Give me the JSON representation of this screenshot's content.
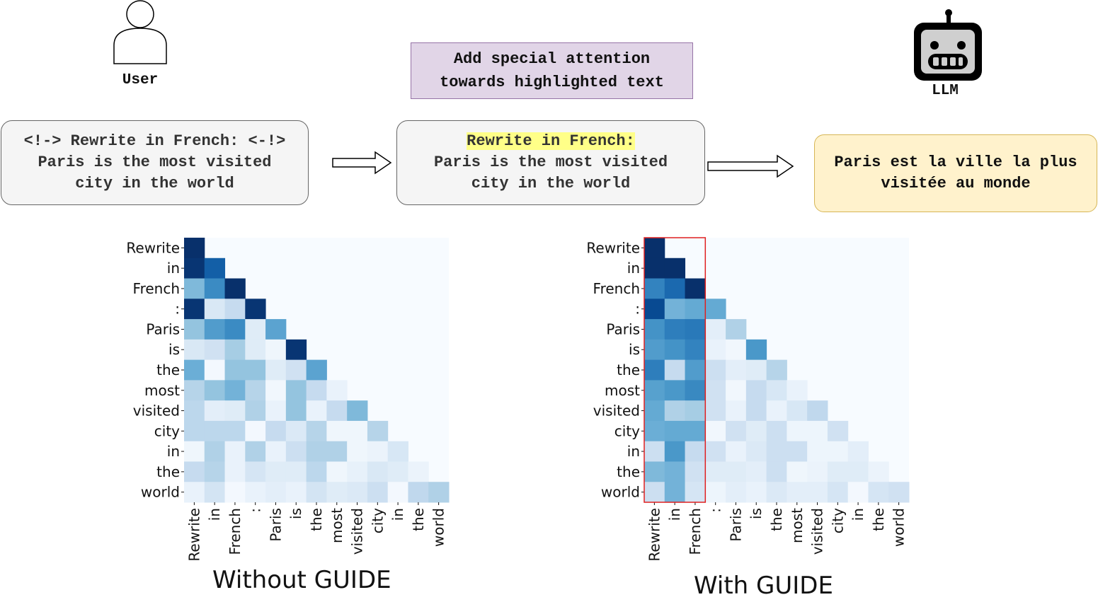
{
  "user": {
    "label": "User",
    "icon": "user-icon"
  },
  "llm": {
    "label": "LLM",
    "icon": "robot-icon"
  },
  "instruction": {
    "text": "Add special attention\ntowards highlighted text"
  },
  "input_prompt": {
    "text": "<!-> Rewrite in French: <-!>\nParis is the most visited\ncity in the world"
  },
  "guided_prompt": {
    "highlighted": "Rewrite in French:",
    "rest": "Paris is the most visited\ncity in the world"
  },
  "output": {
    "text": "Paris est la ville la plus\nvisitée au monde"
  },
  "colors": {
    "instruction_fill": "#e1d5e7",
    "prompt_fill": "#f5f5f5",
    "output_fill": "#fff2cc",
    "highlight": "#ffff88",
    "guide_frame": "#e02020"
  },
  "chart_data": [
    {
      "type": "heatmap",
      "title": "Without GUIDE",
      "colormap": "Blues",
      "tokens": [
        "Rewrite",
        "in",
        "French",
        ":",
        "Paris",
        "is",
        "the",
        "most",
        "visited",
        "city",
        "in",
        "the",
        "world"
      ],
      "matrix": [
        [
          1.0,
          0,
          0,
          0,
          0,
          0,
          0,
          0,
          0,
          0,
          0,
          0,
          0
        ],
        [
          0.98,
          0.82,
          0,
          0,
          0,
          0,
          0,
          0,
          0,
          0,
          0,
          0,
          0
        ],
        [
          0.45,
          0.65,
          1.0,
          0,
          0,
          0,
          0,
          0,
          0,
          0,
          0,
          0,
          0
        ],
        [
          0.98,
          0.15,
          0.25,
          0.98,
          0,
          0,
          0,
          0,
          0,
          0,
          0,
          0,
          0
        ],
        [
          0.4,
          0.58,
          0.65,
          0.12,
          0.55,
          0,
          0,
          0,
          0,
          0,
          0,
          0,
          0
        ],
        [
          0.15,
          0.2,
          0.35,
          0.12,
          0.04,
          0.98,
          0,
          0,
          0,
          0,
          0,
          0,
          0
        ],
        [
          0.5,
          0.02,
          0.4,
          0.4,
          0.12,
          0.2,
          0.55,
          0,
          0,
          0,
          0,
          0,
          0
        ],
        [
          0.3,
          0.4,
          0.48,
          0.3,
          0.03,
          0.4,
          0.25,
          0.07,
          0,
          0,
          0,
          0,
          0
        ],
        [
          0.28,
          0.1,
          0.12,
          0.32,
          0.07,
          0.4,
          0.07,
          0.25,
          0.45,
          0,
          0,
          0,
          0
        ],
        [
          0.28,
          0.28,
          0.28,
          0.02,
          0.25,
          0.14,
          0.3,
          0.04,
          0.04,
          0.3,
          0,
          0,
          0
        ],
        [
          0.04,
          0.32,
          0.07,
          0.32,
          0.07,
          0.22,
          0.32,
          0.32,
          0.04,
          0.06,
          0.16,
          0,
          0
        ],
        [
          0.25,
          0.3,
          0.07,
          0.17,
          0.12,
          0.12,
          0.28,
          0.04,
          0.08,
          0.15,
          0.12,
          0.06,
          0
        ],
        [
          0.07,
          0.18,
          0.02,
          0.07,
          0.1,
          0.07,
          0.18,
          0.12,
          0.14,
          0.22,
          0.02,
          0.27,
          0.32
        ]
      ]
    },
    {
      "type": "heatmap",
      "title": "With GUIDE",
      "colormap": "Blues",
      "tokens": [
        "Rewrite",
        "in",
        "French",
        ":",
        "Paris",
        "is",
        "the",
        "most",
        "visited",
        "city",
        "in",
        "the",
        "world"
      ],
      "highlighted_tokens": [
        "Rewrite",
        "in",
        "French"
      ],
      "matrix": [
        [
          1.0,
          0,
          0,
          0,
          0,
          0,
          0,
          0,
          0,
          0,
          0,
          0,
          0
        ],
        [
          1.0,
          1.0,
          0,
          0,
          0,
          0,
          0,
          0,
          0,
          0,
          0,
          0,
          0
        ],
        [
          0.68,
          0.78,
          1.0,
          0,
          0,
          0,
          0,
          0,
          0,
          0,
          0,
          0,
          0
        ],
        [
          0.9,
          0.48,
          0.52,
          0.52,
          0,
          0,
          0,
          0,
          0,
          0,
          0,
          0,
          0
        ],
        [
          0.62,
          0.7,
          0.72,
          0.1,
          0.32,
          0,
          0,
          0,
          0,
          0,
          0,
          0,
          0
        ],
        [
          0.58,
          0.62,
          0.68,
          0.07,
          0.03,
          0.6,
          0,
          0,
          0,
          0,
          0,
          0,
          0
        ],
        [
          0.7,
          0.25,
          0.58,
          0.22,
          0.1,
          0.12,
          0.3,
          0,
          0,
          0,
          0,
          0,
          0
        ],
        [
          0.56,
          0.6,
          0.66,
          0.2,
          0.03,
          0.25,
          0.16,
          0.07,
          0,
          0,
          0,
          0,
          0
        ],
        [
          0.52,
          0.32,
          0.35,
          0.2,
          0.07,
          0.25,
          0.07,
          0.16,
          0.27,
          0,
          0,
          0,
          0
        ],
        [
          0.5,
          0.52,
          0.52,
          0.03,
          0.2,
          0.12,
          0.22,
          0.05,
          0.05,
          0.2,
          0,
          0,
          0
        ],
        [
          0.22,
          0.6,
          0.25,
          0.2,
          0.07,
          0.14,
          0.22,
          0.22,
          0.05,
          0.05,
          0.1,
          0,
          0
        ],
        [
          0.45,
          0.48,
          0.2,
          0.12,
          0.12,
          0.1,
          0.22,
          0.04,
          0.06,
          0.12,
          0.12,
          0.06,
          0
        ],
        [
          0.22,
          0.48,
          0.17,
          0.05,
          0.1,
          0.07,
          0.14,
          0.1,
          0.1,
          0.17,
          0.02,
          0.17,
          0.2
        ]
      ]
    }
  ]
}
